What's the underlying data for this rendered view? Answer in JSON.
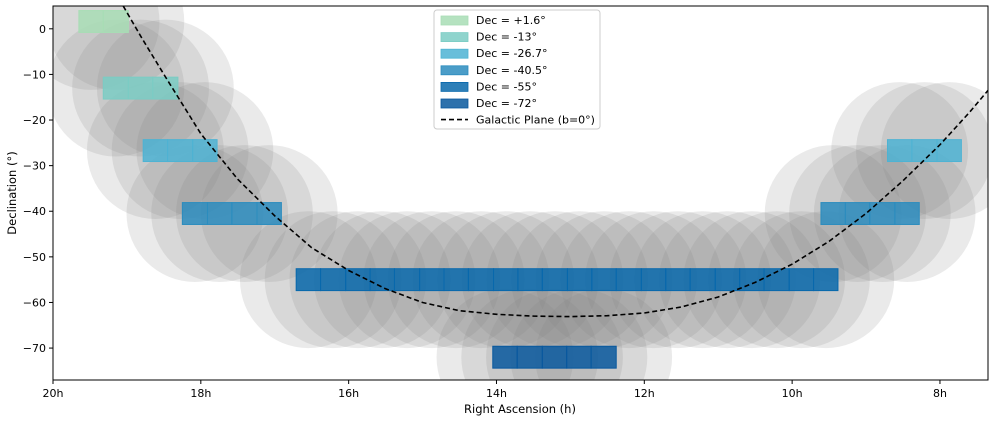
{
  "chart_data": {
    "type": "scatter",
    "title": "",
    "xlabel": "Right Ascension (h)",
    "ylabel": "Declination (°)",
    "xlim": [
      20.0,
      7.35
    ],
    "ylim": [
      -77,
      5
    ],
    "x_ticks": [
      {
        "value": 20,
        "label": "20h"
      },
      {
        "value": 18,
        "label": "18h"
      },
      {
        "value": 16,
        "label": "16h"
      },
      {
        "value": 14,
        "label": "14h"
      },
      {
        "value": 12,
        "label": "12h"
      },
      {
        "value": 10,
        "label": "10h"
      },
      {
        "value": 8,
        "label": "8h"
      }
    ],
    "y_ticks": [
      {
        "value": 0,
        "label": "0"
      },
      {
        "value": -10,
        "label": "−10"
      },
      {
        "value": -20,
        "label": "−20"
      },
      {
        "value": -30,
        "label": "−30"
      },
      {
        "value": -40,
        "label": "−40"
      },
      {
        "value": -50,
        "label": "−50"
      },
      {
        "value": -60,
        "label": "−60"
      },
      {
        "value": -70,
        "label": "−70"
      }
    ],
    "grid": false,
    "legend_position": "top-center",
    "coverage_circle_radius_deg": 15,
    "tile_half_height_deg": 2.4,
    "series": [
      {
        "name": "Dec = +1.6°",
        "dec": 1.6,
        "color": "#a8ddb5",
        "tiles": [
          {
            "ra_start": 19.65,
            "ra_end": 19.32
          },
          {
            "ra_start": 19.32,
            "ra_end": 18.98
          }
        ]
      },
      {
        "name": "Dec = -13°",
        "dec": -13,
        "color": "#7bccc4",
        "tiles": [
          {
            "ra_start": 19.32,
            "ra_end": 18.98
          },
          {
            "ra_start": 18.98,
            "ra_end": 18.65
          },
          {
            "ra_start": 18.65,
            "ra_end": 18.31
          }
        ]
      },
      {
        "name": "Dec = -26.7°",
        "dec": -26.7,
        "color": "#4eb3d3",
        "tiles": [
          {
            "ra_start": 18.78,
            "ra_end": 18.45
          },
          {
            "ra_start": 18.45,
            "ra_end": 18.11
          },
          {
            "ra_start": 18.11,
            "ra_end": 17.78
          }
        ]
      },
      {
        "name": "Dec = -40.5°",
        "dec": -40.5,
        "color": "#2b8cbe",
        "tiles": [
          {
            "ra_start": 18.25,
            "ra_end": 17.91
          },
          {
            "ra_start": 17.91,
            "ra_end": 17.58
          },
          {
            "ra_start": 17.58,
            "ra_end": 17.24
          },
          {
            "ra_start": 17.24,
            "ra_end": 16.91
          }
        ]
      },
      {
        "name": "Dec = -55°",
        "dec": -55,
        "color": "#0868ac",
        "tiles": [
          {
            "ra_start": 16.71,
            "ra_end": 16.38
          },
          {
            "ra_start": 16.38,
            "ra_end": 16.04
          },
          {
            "ra_start": 16.04,
            "ra_end": 15.71
          },
          {
            "ra_start": 15.71,
            "ra_end": 15.38
          },
          {
            "ra_start": 15.38,
            "ra_end": 15.04
          },
          {
            "ra_start": 15.04,
            "ra_end": 14.71
          },
          {
            "ra_start": 14.71,
            "ra_end": 14.38
          },
          {
            "ra_start": 14.38,
            "ra_end": 14.04
          },
          {
            "ra_start": 14.04,
            "ra_end": 13.71
          },
          {
            "ra_start": 13.71,
            "ra_end": 13.38
          },
          {
            "ra_start": 13.38,
            "ra_end": 13.04
          },
          {
            "ra_start": 13.04,
            "ra_end": 12.71
          },
          {
            "ra_start": 12.71,
            "ra_end": 12.38
          },
          {
            "ra_start": 12.38,
            "ra_end": 12.04
          },
          {
            "ra_start": 12.04,
            "ra_end": 11.71
          },
          {
            "ra_start": 11.71,
            "ra_end": 11.38
          },
          {
            "ra_start": 11.38,
            "ra_end": 11.04
          },
          {
            "ra_start": 11.04,
            "ra_end": 10.71
          },
          {
            "ra_start": 10.71,
            "ra_end": 10.38
          },
          {
            "ra_start": 10.38,
            "ra_end": 10.04
          },
          {
            "ra_start": 10.04,
            "ra_end": 9.71
          },
          {
            "ra_start": 9.71,
            "ra_end": 9.38
          }
        ]
      },
      {
        "name": "Dec = -72°",
        "dec": -72,
        "color": "#08589e",
        "tiles": [
          {
            "ra_start": 14.05,
            "ra_end": 13.72
          },
          {
            "ra_start": 13.72,
            "ra_end": 13.38
          },
          {
            "ra_start": 13.38,
            "ra_end": 13.05
          },
          {
            "ra_start": 13.05,
            "ra_end": 12.72
          },
          {
            "ra_start": 12.72,
            "ra_end": 12.38
          }
        ]
      }
    ],
    "mirror_tiles": [
      {
        "series": "Dec = -26.7°",
        "dec": -26.7,
        "color": "#4eb3d3",
        "tiles": [
          {
            "ra_start": 8.71,
            "ra_end": 8.38
          },
          {
            "ra_start": 8.38,
            "ra_end": 8.04
          },
          {
            "ra_start": 8.04,
            "ra_end": 7.71
          }
        ]
      },
      {
        "series": "Dec = -40.5°",
        "dec": -40.5,
        "color": "#2b8cbe",
        "tiles": [
          {
            "ra_start": 9.61,
            "ra_end": 9.28
          },
          {
            "ra_start": 9.28,
            "ra_end": 8.95
          },
          {
            "ra_start": 8.95,
            "ra_end": 8.61
          },
          {
            "ra_start": 8.61,
            "ra_end": 8.28
          }
        ]
      }
    ],
    "galactic_plane": {
      "name": "Galactic Plane (b=0°)",
      "style": "dashed",
      "color": "#000000",
      "points": [
        [
          19.05,
          5
        ],
        [
          18.8,
          -2
        ],
        [
          18.5,
          -10
        ],
        [
          18.0,
          -23
        ],
        [
          17.5,
          -33
        ],
        [
          17.0,
          -41
        ],
        [
          16.5,
          -48
        ],
        [
          16.0,
          -53
        ],
        [
          15.5,
          -57
        ],
        [
          15.0,
          -60
        ],
        [
          14.5,
          -61.8
        ],
        [
          14.0,
          -62.6
        ],
        [
          13.5,
          -63
        ],
        [
          13.0,
          -63.1
        ],
        [
          12.5,
          -62.9
        ],
        [
          12.0,
          -62.3
        ],
        [
          11.5,
          -61
        ],
        [
          11.0,
          -58.8
        ],
        [
          10.5,
          -55.6
        ],
        [
          10.0,
          -51.6
        ],
        [
          9.5,
          -46.6
        ],
        [
          9.0,
          -40.5
        ],
        [
          8.5,
          -33.3
        ],
        [
          8.0,
          -25.4
        ],
        [
          7.6,
          -18.3
        ],
        [
          7.35,
          -13.5
        ]
      ]
    }
  }
}
